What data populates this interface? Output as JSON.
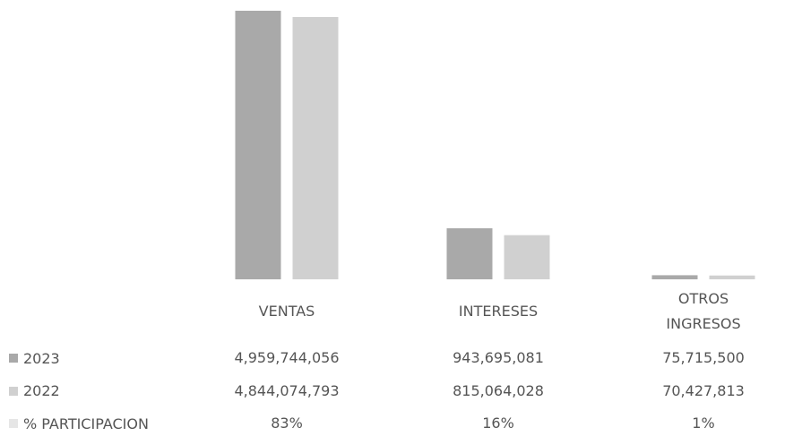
{
  "chart_data": {
    "type": "bar",
    "categories": [
      "VENTAS",
      "INTERESES",
      "OTROS INGRESOS"
    ],
    "series": [
      {
        "name": "2023",
        "color": "#a9a9a9",
        "values": [
          4959744056,
          943695081,
          75715500
        ],
        "value_labels": [
          "4,959,744,056",
          "943,695,081",
          "75,715,500"
        ]
      },
      {
        "name": "2022",
        "color": "#d0d0d0",
        "values": [
          4844074793,
          815064028,
          70427813
        ],
        "value_labels": [
          "4,844,074,793",
          "815,064,028",
          "70,427,813"
        ]
      },
      {
        "name": "% PARTICIPACION",
        "color": "#e6e6e6",
        "values": [
          83,
          16,
          1
        ],
        "value_labels": [
          "83%",
          "16%",
          "1%"
        ]
      }
    ]
  }
}
